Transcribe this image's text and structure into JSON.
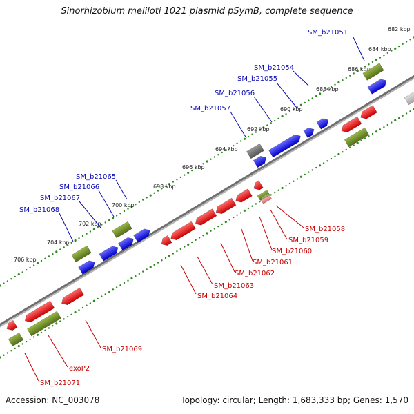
{
  "title": "Sinorhizobium meliloti 1021 plasmid pSymB, complete sequence",
  "footer": {
    "accession": "Accession: NC_003078",
    "summary": "Topology: circular; Length: 1,683,333 bp; Genes: 1,570"
  },
  "colors": {
    "forward_strand": "#1010e8",
    "reverse_strand": "#e01010",
    "rna_gene": "#6e8a20",
    "other_gene": "#707070",
    "forward_label": "#0a0ab4",
    "reverse_label": "#c80000",
    "backbone": "#8a8a8a",
    "tick_dots": "#2e8b20"
  },
  "kbp_labels": [
    "682 kbp",
    "684 kbp",
    "686 kbp",
    "688 kbp",
    "690 kbp",
    "692 kbp",
    "694 kbp",
    "696 kbp",
    "698 kbp",
    "700 kbp",
    "702 kbp",
    "704 kbp",
    "706 kbp"
  ],
  "forward_gene_labels": [
    "SM_b21051",
    "SM_b21054",
    "SM_b21055",
    "SM_b21056",
    "SM_b21057",
    "SM_b21065",
    "SM_b21066",
    "SM_b21067",
    "SM_b21068"
  ],
  "reverse_gene_labels": [
    "SM_b21058",
    "SM_b21059",
    "SM_b21060",
    "SM_b21061",
    "SM_b21062",
    "SM_b21063",
    "SM_b21064",
    "SM_b21069",
    "exoP2",
    "SM_b21071"
  ]
}
